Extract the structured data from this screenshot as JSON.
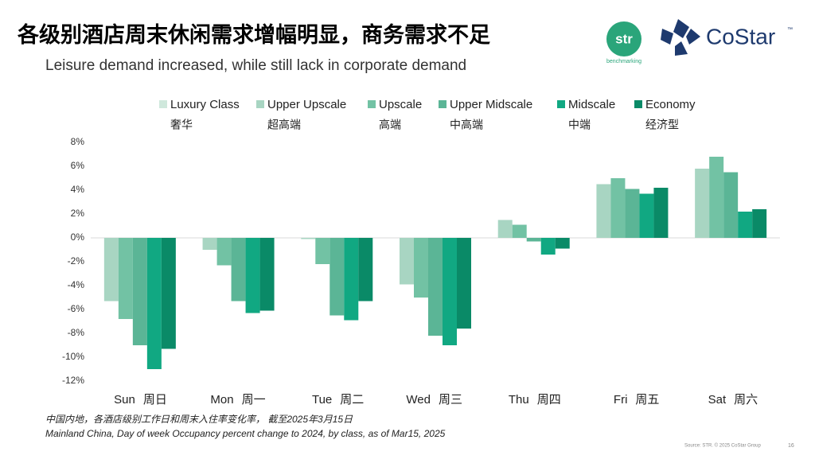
{
  "header": {
    "title": "各级别酒店周末休闲需求增幅明显，商务需求不足",
    "subtitle": "Leisure demand increased, while still lack in corporate demand",
    "logo_str": "str",
    "logo_str_sub": "benchmarking",
    "logo_costar": "CoStar",
    "logo_tm": "™"
  },
  "chart_data": {
    "type": "bar",
    "categories": [
      "Sun",
      "Mon",
      "Tue",
      "Wed",
      "Thu",
      "Fri",
      "Sat"
    ],
    "categories_cn": [
      "周日",
      "周一",
      "周二",
      "周三",
      "周四",
      "周五",
      "周六"
    ],
    "series": [
      {
        "name": "Luxury Class",
        "name_cn": "奢华",
        "color": "#cfe8dc",
        "values": [
          null,
          null,
          null,
          null,
          null,
          null,
          null
        ]
      },
      {
        "name": "Upper Upscale",
        "name_cn": "超高端",
        "color": "#a8d5c2",
        "values": [
          -5.3,
          -1.0,
          -0.1,
          -3.9,
          1.5,
          4.5,
          5.8
        ]
      },
      {
        "name": "Upscale",
        "name_cn": "高端",
        "color": "#72c2a4",
        "values": [
          -6.8,
          -2.3,
          -2.2,
          -5.0,
          1.1,
          5.0,
          6.8
        ]
      },
      {
        "name": "Upper Midscale",
        "name_cn": "中高端",
        "color": "#5bb596",
        "values": [
          -9.0,
          -5.3,
          -6.5,
          -8.2,
          -0.3,
          4.1,
          5.5
        ]
      },
      {
        "name": "Midscale",
        "name_cn": "中端",
        "color": "#11a882",
        "values": [
          -11.0,
          -6.3,
          -6.9,
          -9.0,
          -1.4,
          3.7,
          2.2
        ]
      },
      {
        "name": "Economy",
        "name_cn": "经济型",
        "color": "#0a8a67",
        "values": [
          -9.3,
          -6.1,
          -5.3,
          -7.6,
          -0.9,
          4.2,
          2.4
        ]
      }
    ],
    "ylim": [
      -12,
      8
    ],
    "yticks": [
      {
        "value": -12,
        "label": "-12%"
      },
      {
        "value": -10,
        "label": "-10%"
      },
      {
        "value": -8,
        "label": "-8%"
      },
      {
        "value": -6,
        "label": "-6%"
      },
      {
        "value": -4,
        "label": "-4%"
      },
      {
        "value": -2,
        "label": "-2%"
      },
      {
        "value": 0,
        "label": "0%"
      },
      {
        "value": 2,
        "label": "2%"
      },
      {
        "value": 4,
        "label": "4%"
      },
      {
        "value": 6,
        "label": "6%"
      },
      {
        "value": 8,
        "label": "8%"
      }
    ],
    "grid": false
  },
  "footer": {
    "note_cn": "中国内地，各酒店级别工作日和周末入住率变化率， 截至2025年3月15日",
    "note_en": "Mainland China, Day of week Occupancy percent change to 2024, by class, as of Mar15, 2025",
    "source": "Source: STR. © 2025 CoStar Group",
    "page": "16"
  }
}
